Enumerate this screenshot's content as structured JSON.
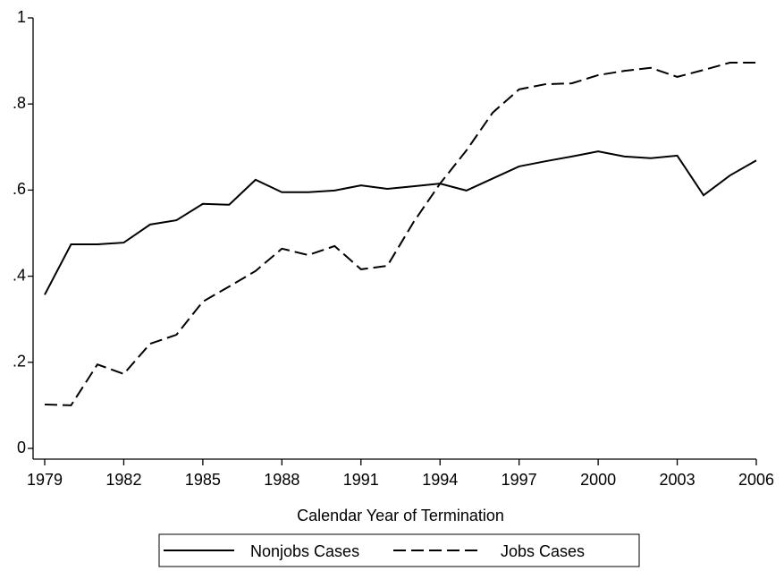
{
  "chart_data": {
    "type": "line",
    "xlabel": "Calendar Year of Termination",
    "x": [
      1979,
      1980,
      1981,
      1982,
      1983,
      1984,
      1985,
      1986,
      1987,
      1988,
      1989,
      1990,
      1991,
      1992,
      1993,
      1994,
      1995,
      1996,
      1997,
      1998,
      1999,
      2000,
      2001,
      2002,
      2003,
      2004,
      2005,
      2006
    ],
    "series": [
      {
        "name": "Nonjobs Cases",
        "color": "#000000",
        "dash": "solid",
        "values": [
          0.357,
          0.474,
          0.474,
          0.478,
          0.52,
          0.53,
          0.568,
          0.566,
          0.624,
          0.595,
          0.595,
          0.599,
          0.611,
          0.603,
          0.609,
          0.615,
          0.599,
          0.627,
          0.655,
          0.667,
          0.678,
          0.69,
          0.678,
          0.674,
          0.68,
          0.588,
          0.634,
          0.669
        ]
      },
      {
        "name": "Jobs Cases",
        "color": "#000000",
        "dash": "dashed",
        "values": [
          0.102,
          0.1,
          0.195,
          0.173,
          0.243,
          0.264,
          0.341,
          0.376,
          0.412,
          0.464,
          0.449,
          0.47,
          0.416,
          0.424,
          0.526,
          0.615,
          0.692,
          0.78,
          0.834,
          0.846,
          0.848,
          0.867,
          0.877,
          0.884,
          0.863,
          0.879,
          0.896,
          0.896
        ]
      }
    ],
    "xlim": [
      1979,
      2006
    ],
    "xticks": [
      1979,
      1982,
      1985,
      1988,
      1991,
      1994,
      1997,
      2000,
      2003,
      2006
    ],
    "ylim": [
      0,
      1
    ],
    "yticks": [
      0,
      {
        "value": 0.2,
        "label": ".2"
      },
      {
        "value": 0.4,
        "label": ".4"
      },
      {
        "value": 0.6,
        "label": ".6"
      },
      {
        "value": 0.8,
        "label": ".8"
      },
      1
    ],
    "legend": "bottom"
  }
}
